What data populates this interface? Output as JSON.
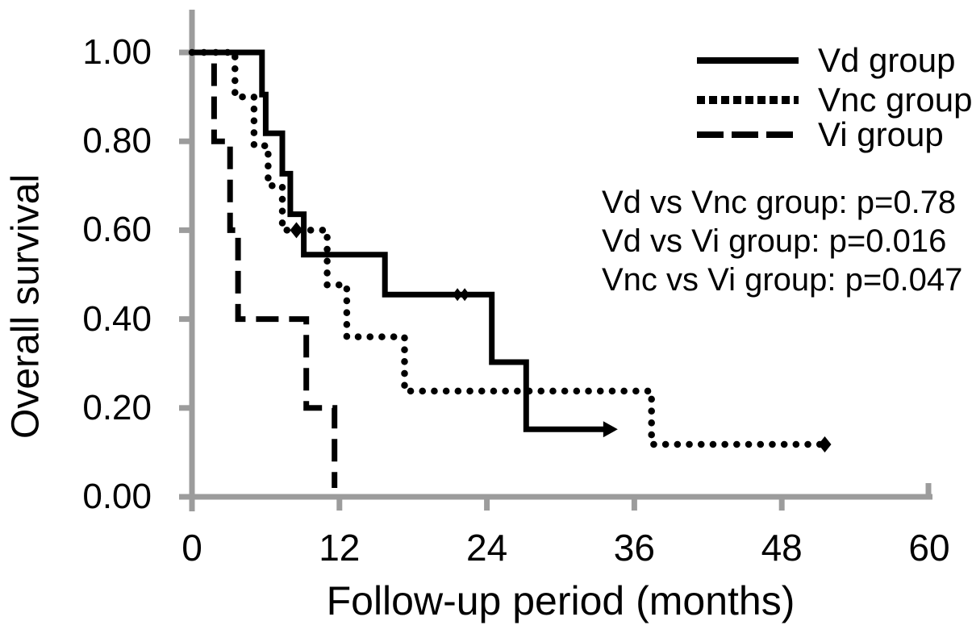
{
  "figure": {
    "background": "#ffffff",
    "axis_color": "#9c9c9c",
    "curve_color": "#000000",
    "text_color": "#000000"
  },
  "chart_data": {
    "type": "line",
    "subtype": "kaplan-meier-step",
    "title": "",
    "xlabel": "Follow-up period (months)",
    "ylabel": "Overall survival",
    "xlim": [
      0,
      60
    ],
    "ylim": [
      0.0,
      1.0
    ],
    "grid": false,
    "legend_position": "top-right",
    "x_ticks": [
      {
        "value": 0,
        "label": "0"
      },
      {
        "value": 12,
        "label": "12"
      },
      {
        "value": 24,
        "label": "24"
      },
      {
        "value": 36,
        "label": "36"
      },
      {
        "value": 48,
        "label": "48"
      },
      {
        "value": 60,
        "label": "60"
      }
    ],
    "y_ticks": [
      {
        "value": 0.0,
        "label": "0.00"
      },
      {
        "value": 0.2,
        "label": "0.20"
      },
      {
        "value": 0.4,
        "label": "0.40"
      },
      {
        "value": 0.6,
        "label": "0.60"
      },
      {
        "value": 0.8,
        "label": "0.80"
      },
      {
        "value": 1.0,
        "label": "1.00"
      }
    ],
    "series": [
      {
        "name": "Vd group",
        "style": "solid",
        "points": [
          [
            0,
            1.0
          ],
          [
            5.7,
            1.0
          ],
          [
            5.7,
            0.905
          ],
          [
            6.0,
            0.905
          ],
          [
            6.0,
            0.818
          ],
          [
            7.35,
            0.818
          ],
          [
            7.35,
            0.727
          ],
          [
            8.0,
            0.727
          ],
          [
            8.0,
            0.636
          ],
          [
            9.1,
            0.636
          ],
          [
            9.1,
            0.545
          ],
          [
            15.7,
            0.545
          ],
          [
            15.7,
            0.455
          ],
          [
            24.4,
            0.455
          ],
          [
            24.4,
            0.303
          ],
          [
            27.2,
            0.303
          ],
          [
            27.2,
            0.152
          ],
          [
            33.6,
            0.152
          ]
        ],
        "markers": [
          {
            "type": "double-diamond",
            "x": 21.9,
            "y": 0.455
          },
          {
            "type": "arrow-right",
            "x": 33.6,
            "y": 0.152
          }
        ]
      },
      {
        "name": "Vnc group",
        "style": "dotted",
        "points": [
          [
            0,
            1.0
          ],
          [
            3.5,
            1.0
          ],
          [
            3.5,
            0.9
          ],
          [
            5.05,
            0.9
          ],
          [
            5.05,
            0.79
          ],
          [
            6.2,
            0.79
          ],
          [
            6.2,
            0.7
          ],
          [
            7.35,
            0.7
          ],
          [
            7.35,
            0.6
          ],
          [
            11.0,
            0.6
          ],
          [
            11.0,
            0.477
          ],
          [
            12.6,
            0.477
          ],
          [
            12.6,
            0.36
          ],
          [
            17.3,
            0.36
          ],
          [
            17.3,
            0.238
          ],
          [
            37.4,
            0.238
          ],
          [
            37.4,
            0.118
          ],
          [
            51.5,
            0.118
          ]
        ],
        "markers": [
          {
            "type": "diamond",
            "x": 8.5,
            "y": 0.6
          },
          {
            "type": "diamond",
            "x": 51.5,
            "y": 0.118
          }
        ]
      },
      {
        "name": "Vi group",
        "style": "dashed",
        "points": [
          [
            0,
            1.0
          ],
          [
            1.8,
            1.0
          ],
          [
            1.8,
            0.8
          ],
          [
            3.1,
            0.8
          ],
          [
            3.1,
            0.6
          ],
          [
            3.75,
            0.6
          ],
          [
            3.75,
            0.4
          ],
          [
            9.3,
            0.4
          ],
          [
            9.3,
            0.2
          ],
          [
            11.6,
            0.2
          ],
          [
            11.6,
            0.02
          ]
        ],
        "markers": []
      }
    ],
    "annotations": [
      "Vd vs Vnc group: p=0.78",
      "Vd vs Vi group: p=0.016",
      "Vnc vs Vi group: p=0.047"
    ]
  }
}
